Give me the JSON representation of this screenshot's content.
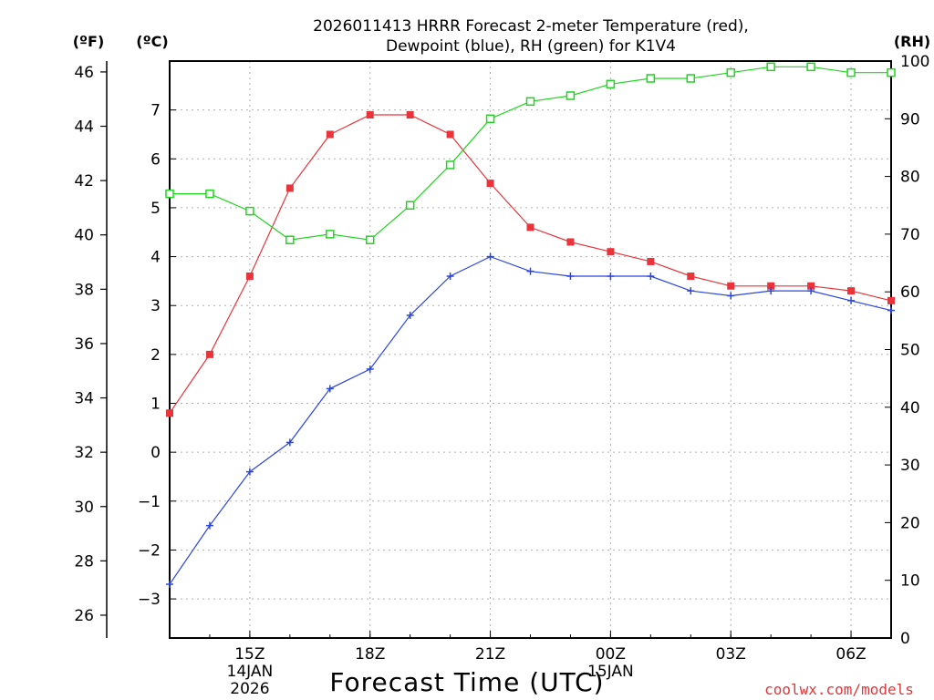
{
  "chart_data": {
    "type": "line",
    "title_line1": "2026011413 HRRR Forecast 2-meter Temperature (red),",
    "title_line2": "Dewpoint (blue), RH (green) for K1V4",
    "xlabel": "Forecast Time (UTC)",
    "credit": "coolwx.com/models",
    "unit_labels": {
      "fahrenheit": "(ºF)",
      "celsius": "(ºC)",
      "rh": "(RH)"
    },
    "x_hours": [
      13,
      14,
      15,
      16,
      17,
      18,
      19,
      20,
      21,
      22,
      23,
      24,
      25,
      26,
      27,
      28,
      29,
      30,
      31
    ],
    "x_range": [
      13,
      31
    ],
    "x_ticks": [
      {
        "hour": 15,
        "label": "15Z",
        "sub1": "14JAN",
        "sub2": "2026"
      },
      {
        "hour": 18,
        "label": "18Z"
      },
      {
        "hour": 21,
        "label": "21Z"
      },
      {
        "hour": 24,
        "label": "00Z",
        "sub1": "15JAN"
      },
      {
        "hour": 27,
        "label": "03Z"
      },
      {
        "hour": 30,
        "label": "06Z"
      }
    ],
    "celsius_range": [
      -3.8,
      8.0
    ],
    "celsius_ticks": [
      "-3",
      "-2",
      "-1",
      "0",
      "1",
      "2",
      "3",
      "4",
      "5",
      "6",
      "7"
    ],
    "fahrenheit_ticks": [
      "26",
      "28",
      "30",
      "32",
      "34",
      "36",
      "38",
      "40",
      "42",
      "44",
      "46"
    ],
    "rh_range": [
      0,
      100
    ],
    "rh_ticks": [
      "0",
      "10",
      "20",
      "30",
      "40",
      "50",
      "60",
      "70",
      "80",
      "90",
      "100"
    ],
    "series": [
      {
        "name": "Temperature",
        "unit": "C",
        "color": "#e8343a",
        "marker": "filled-square",
        "values": [
          0.8,
          2.0,
          3.6,
          5.4,
          6.5,
          6.9,
          6.9,
          6.5,
          5.5,
          4.6,
          4.3,
          4.1,
          3.9,
          3.6,
          3.4,
          3.4,
          3.4,
          3.3,
          3.1
        ]
      },
      {
        "name": "Dewpoint",
        "unit": "C",
        "color": "#2a46e0",
        "marker": "plus",
        "values": [
          -2.7,
          -1.5,
          -0.4,
          0.2,
          1.3,
          1.7,
          2.8,
          3.6,
          4.0,
          3.7,
          3.6,
          3.6,
          3.6,
          3.3,
          3.2,
          3.3,
          3.3,
          3.1,
          2.9
        ]
      },
      {
        "name": "RH",
        "unit": "%",
        "color": "#1ed61e",
        "marker": "open-square",
        "values": [
          77,
          77,
          74,
          69,
          70,
          69,
          75,
          82,
          90,
          93,
          94,
          96,
          97,
          97,
          98,
          99,
          99,
          98,
          98
        ]
      }
    ]
  }
}
